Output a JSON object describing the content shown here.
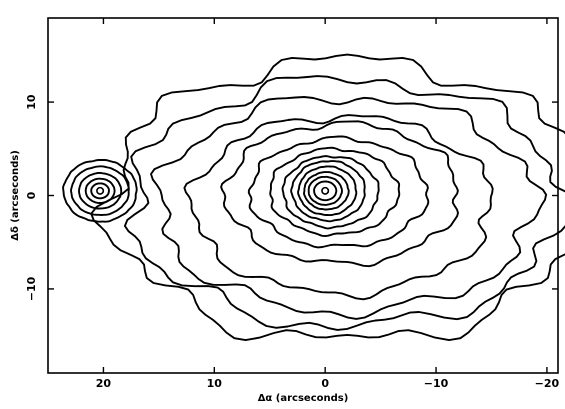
{
  "chart_data": {
    "type": "contour",
    "xlabel": "Δα (arcseconds)",
    "ylabel": "Δδ (arcseconds)",
    "xlim": [
      25,
      -21
    ],
    "ylim": [
      -19,
      19
    ],
    "x_ticks": [
      20,
      10,
      0,
      -10,
      -20
    ],
    "y_ticks": [
      -10,
      0,
      10
    ],
    "x_tick_labels": [
      "20",
      "10",
      "0",
      "−10",
      "−20"
    ],
    "y_tick_labels": [
      "−10",
      "0",
      "10"
    ],
    "grid": false,
    "sources": [
      {
        "x": 0,
        "y": 0.5
      },
      {
        "x": 20.3,
        "y": 0.5
      }
    ],
    "contours": [
      {
        "center": [
          -2.0,
          -0.5
        ],
        "rx": 21.5,
        "ry": 15.0,
        "rough": 0.55
      },
      {
        "center": [
          -2.0,
          -0.8
        ],
        "rx": 19.5,
        "ry": 13.2,
        "rough": 0.5
      },
      {
        "center": [
          -2.0,
          -1.0
        ],
        "rx": 17.0,
        "ry": 11.5,
        "rough": 0.45
      },
      {
        "center": [
          -1.5,
          -1.0
        ],
        "rx": 13.5,
        "ry": 9.5,
        "rough": 0.4
      },
      {
        "center": [
          -1.5,
          0.2
        ],
        "rx": 10.5,
        "ry": 7.5,
        "rough": 0.35
      },
      {
        "center": [
          -1.2,
          0.3
        ],
        "rx": 8.0,
        "ry": 5.8,
        "rough": 0.3
      },
      {
        "center": [
          -0.8,
          0.4
        ],
        "rx": 5.8,
        "ry": 4.6,
        "rough": 0.25
      },
      {
        "center": [
          -0.5,
          0.4
        ],
        "rx": 4.3,
        "ry": 3.8,
        "rough": 0.2
      },
      {
        "center": [
          -0.3,
          0.5
        ],
        "rx": 3.3,
        "ry": 3.2,
        "rough": 0.15
      },
      {
        "center": [
          -0.2,
          0.5
        ],
        "rx": 2.6,
        "ry": 2.6,
        "rough": 0.12
      },
      {
        "center": [
          -0.1,
          0.5
        ],
        "rx": 2.0,
        "ry": 2.0,
        "rough": 0.1
      },
      {
        "center": [
          0.0,
          0.5
        ],
        "rx": 1.5,
        "ry": 1.5,
        "rough": 0.08
      },
      {
        "center": [
          0.0,
          0.5
        ],
        "rx": 1.0,
        "ry": 1.0,
        "rough": 0.05
      },
      {
        "center": [
          20.3,
          0.5
        ],
        "rx": 3.3,
        "ry": 3.3,
        "rough": 0.1
      },
      {
        "center": [
          20.3,
          0.5
        ],
        "rx": 2.6,
        "ry": 2.6,
        "rough": 0.08
      },
      {
        "center": [
          20.3,
          0.5
        ],
        "rx": 1.9,
        "ry": 1.9,
        "rough": 0.06
      },
      {
        "center": [
          20.3,
          0.5
        ],
        "rx": 1.3,
        "ry": 1.3,
        "rough": 0.05
      },
      {
        "center": [
          20.3,
          0.5
        ],
        "rx": 0.8,
        "ry": 0.8,
        "rough": 0.04
      }
    ]
  }
}
